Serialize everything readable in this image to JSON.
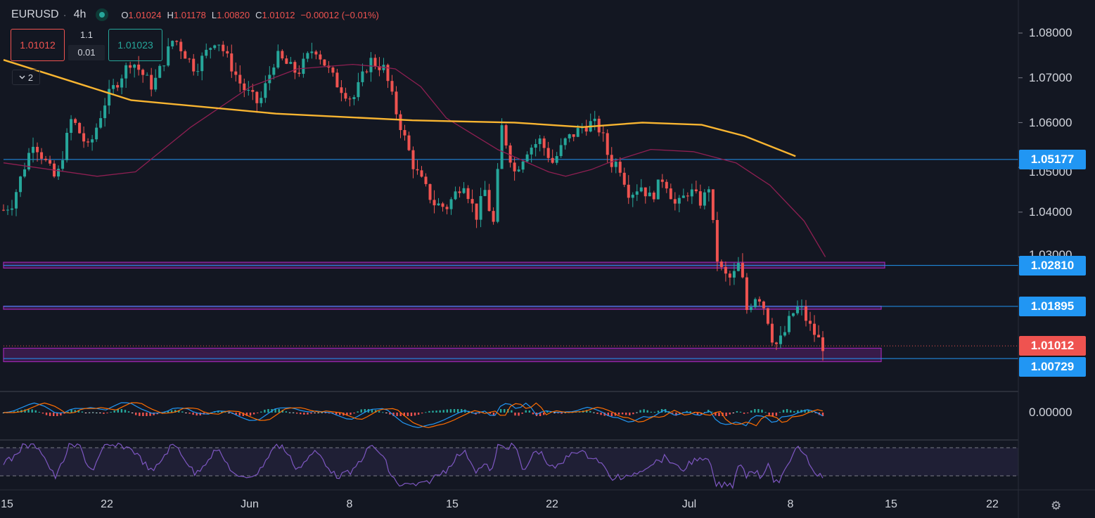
{
  "legend": {
    "symbol": "EURUSD",
    "interval": "4h",
    "open_label": "O",
    "open": "1.01024",
    "high_label": "H",
    "high": "1.01178",
    "low_label": "L",
    "low": "1.00820",
    "close_label": "C",
    "close": "1.01012",
    "change": "−0.00012 (−0.01%)"
  },
  "trade": {
    "sell_price": "1.01012",
    "buy_price": "1.01023",
    "quantity": "1.1",
    "spread": "0.01"
  },
  "indicators_toggle": {
    "icon": "chevron-down-icon",
    "count": "2"
  },
  "price_axis": {
    "ticks": [
      "1.08000",
      "1.07000",
      "1.06000",
      "1.04000",
      "0.00000"
    ],
    "partial_ticks": [
      "1.05000",
      "1.03000"
    ],
    "labels": {
      "level_high": "1.05177",
      "level_mid1": "1.02810",
      "level_mid2": "1.01895",
      "last": "1.01012",
      "level_low": "1.00729"
    },
    "colors": {
      "blue": "#2196f3",
      "red": "#ef5350"
    }
  },
  "time_axis": {
    "ticks": [
      "15",
      "22",
      "Jun",
      "8",
      "15",
      "22",
      "Jul",
      "8",
      "15",
      "22"
    ],
    "settings_icon": "gear-icon"
  },
  "colors": {
    "background": "#131722",
    "up": "#26a69a",
    "down": "#ef5350",
    "ma_long": "#f9b531",
    "ma_short": "#8e1f52",
    "zone": "#9c27b0",
    "macd": "#2196f3",
    "signal": "#ff6d00",
    "rsi": "#7e57c2"
  },
  "chart_data": {
    "type": "candlestick",
    "symbol": "EURUSD",
    "interval": "4h",
    "path": [
      [
        1.0405,
        0
      ],
      [
        1.042,
        10
      ],
      [
        1.056,
        35
      ],
      [
        1.047,
        62
      ],
      [
        1.061,
        80
      ],
      [
        1.054,
        100
      ],
      [
        1.065,
        120
      ],
      [
        1.074,
        150
      ],
      [
        1.068,
        175
      ],
      [
        1.079,
        200
      ],
      [
        1.072,
        225
      ],
      [
        1.079,
        250
      ],
      [
        1.068,
        280
      ],
      [
        1.064,
        300
      ],
      [
        1.075,
        320
      ],
      [
        1.071,
        345
      ],
      [
        1.077,
        365
      ],
      [
        1.069,
        390
      ],
      [
        1.065,
        410
      ],
      [
        1.074,
        430
      ],
      [
        1.072,
        447
      ],
      [
        1.063,
        460
      ],
      [
        1.05,
        482
      ],
      [
        1.042,
        505
      ],
      [
        1.041,
        520
      ],
      [
        1.047,
        540
      ],
      [
        1.039,
        555
      ],
      [
        1.045,
        565
      ],
      [
        1.037,
        575
      ],
      [
        1.059,
        585
      ],
      [
        1.049,
        600
      ],
      [
        1.054,
        615
      ],
      [
        1.056,
        630
      ],
      [
        1.051,
        645
      ],
      [
        1.056,
        660
      ],
      [
        1.059,
        680
      ],
      [
        1.06,
        692
      ],
      [
        1.058,
        702
      ],
      [
        1.051,
        712
      ],
      [
        1.051,
        722
      ],
      [
        1.044,
        735
      ],
      [
        1.046,
        748
      ],
      [
        1.043,
        760
      ],
      [
        1.048,
        775
      ],
      [
        1.041,
        790
      ],
      [
        1.045,
        805
      ],
      [
        1.042,
        820
      ],
      [
        1.046,
        828
      ],
      [
        1.03,
        837
      ],
      [
        1.026,
        845
      ],
      [
        1.025,
        855
      ],
      [
        1.029,
        865
      ],
      [
        1.018,
        872
      ],
      [
        1.022,
        885
      ],
      [
        1.018,
        895
      ],
      [
        1.01,
        905
      ],
      [
        1.012,
        915
      ],
      [
        1.017,
        925
      ],
      [
        1.019,
        935
      ],
      [
        1.015,
        945
      ],
      [
        1.012,
        955
      ],
      [
        1.0101,
        962
      ]
    ],
    "ma_long": [
      [
        1.074,
        0
      ],
      [
        1.065,
        150
      ],
      [
        1.062,
        320
      ],
      [
        1.0605,
        480
      ],
      [
        1.06,
        600
      ],
      [
        1.059,
        680
      ],
      [
        1.06,
        750
      ],
      [
        1.0595,
        820
      ],
      [
        1.057,
        870
      ],
      [
        1.0525,
        930
      ]
    ],
    "ma_short": [
      [
        1.051,
        0
      ],
      [
        1.048,
        110
      ],
      [
        1.049,
        155
      ],
      [
        1.059,
        220
      ],
      [
        1.068,
        290
      ],
      [
        1.072,
        345
      ],
      [
        1.073,
        410
      ],
      [
        1.0725,
        440
      ],
      [
        1.072,
        460
      ],
      [
        1.068,
        490
      ],
      [
        1.061,
        520
      ],
      [
        1.054,
        580
      ],
      [
        1.0515,
        610
      ],
      [
        1.049,
        640
      ],
      [
        1.048,
        660
      ],
      [
        1.0495,
        690
      ],
      [
        1.051,
        710
      ],
      [
        1.054,
        760
      ],
      [
        1.0535,
        810
      ],
      [
        1.051,
        860
      ],
      [
        1.046,
        900
      ],
      [
        1.038,
        940
      ],
      [
        1.03,
        965
      ]
    ],
    "levels": [
      1.05177,
      1.0281,
      1.01895,
      1.00729
    ],
    "zones": [
      [
        1.0288,
        1.0275
      ],
      [
        1.019,
        1.0183
      ],
      [
        1.0096,
        1.0066
      ]
    ],
    "last_price": 1.01012,
    "y_ticks": [
      1.08,
      1.07,
      1.06,
      1.05,
      1.04,
      1.03
    ],
    "macd_zero_label": "0.00000",
    "rsi_band": [
      70,
      30
    ]
  }
}
